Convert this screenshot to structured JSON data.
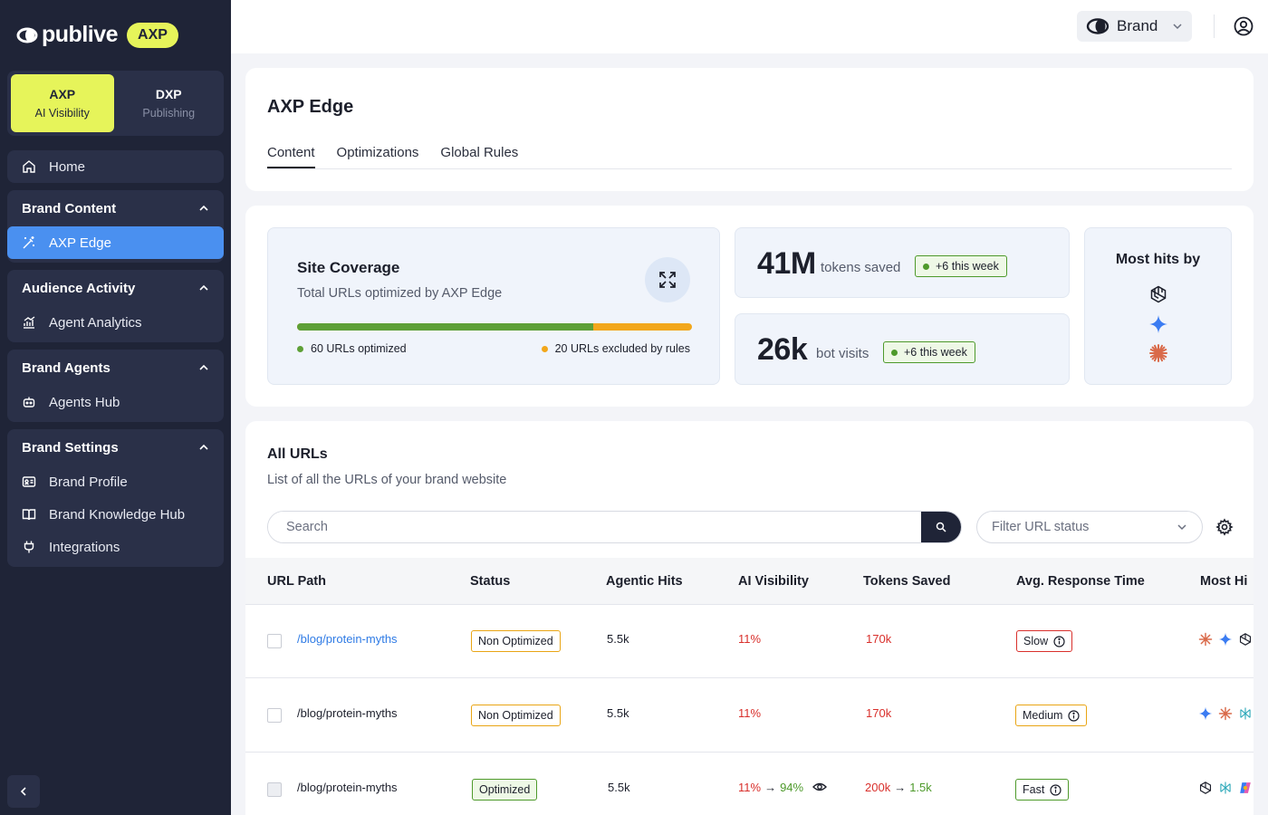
{
  "brand": {
    "logo_text": "publive",
    "badge": "AXP"
  },
  "switcher": [
    {
      "title": "AXP",
      "sub": "AI Visibility"
    },
    {
      "title": "DXP",
      "sub": "Publishing"
    }
  ],
  "nav": {
    "home": "Home",
    "brand_content": {
      "title": "Brand Content",
      "items": [
        "AXP Edge"
      ]
    },
    "audience_activity": {
      "title": "Audience Activity",
      "items": [
        "Agent Analytics"
      ]
    },
    "brand_agents": {
      "title": "Brand Agents",
      "items": [
        "Agents Hub"
      ]
    },
    "brand_settings": {
      "title": "Brand Settings",
      "items": [
        "Brand Profile",
        "Brand Knowledge Hub",
        "Integrations"
      ]
    }
  },
  "topbar": {
    "brand_selector": "Brand"
  },
  "page": {
    "title": "AXP Edge",
    "tabs": [
      "Content",
      "Optimizations",
      "Global Rules"
    ]
  },
  "coverage": {
    "title": "Site Coverage",
    "subtitle": "Total URLs optimized by AXP Edge",
    "optimized_fraction": 0.75,
    "optimized_label": "60 URLs optimized",
    "excluded_label": "20 URLs excluded by rules",
    "color_optimized": "#5ea037",
    "color_excluded": "#f2a71b"
  },
  "stats": {
    "tokens": {
      "value": "41M",
      "label": "tokens saved",
      "change": "+6 this week"
    },
    "visits": {
      "value": "26k",
      "label": "bot visits",
      "change": "+6 this week"
    }
  },
  "most_hits": {
    "title": "Most hits by",
    "icons": [
      "openai-icon",
      "gemini-icon",
      "claude-icon"
    ]
  },
  "urls": {
    "title": "All URLs",
    "subtitle": "List of all the URLs of your brand website",
    "search_placeholder": "Search",
    "filter_placeholder": "Filter URL status",
    "columns": [
      "URL Path",
      "Status",
      "Agentic Hits",
      "AI Visibility",
      "Tokens Saved",
      "Avg. Response Time",
      "Most Hi"
    ],
    "rows": [
      {
        "path": "/blog/protein-myths",
        "status": "Non Optimized",
        "hits": "5.5k",
        "visibility": "11%",
        "visibility_after": "",
        "tokens": "170k",
        "tokens_after": "",
        "response": "Slow"
      },
      {
        "path": "/blog/protein-myths",
        "status": "Non Optimized",
        "hits": "5.5k",
        "visibility": "11%",
        "visibility_after": "",
        "tokens": "170k",
        "tokens_after": "",
        "response": "Medium"
      },
      {
        "path": "/blog/protein-myths",
        "status": "Optimized",
        "hits": "5.5k",
        "visibility": "11%",
        "visibility_after": "94%",
        "tokens": "200k",
        "tokens_after": "1.5k",
        "response": "Fast"
      }
    ],
    "arrow": "→"
  }
}
